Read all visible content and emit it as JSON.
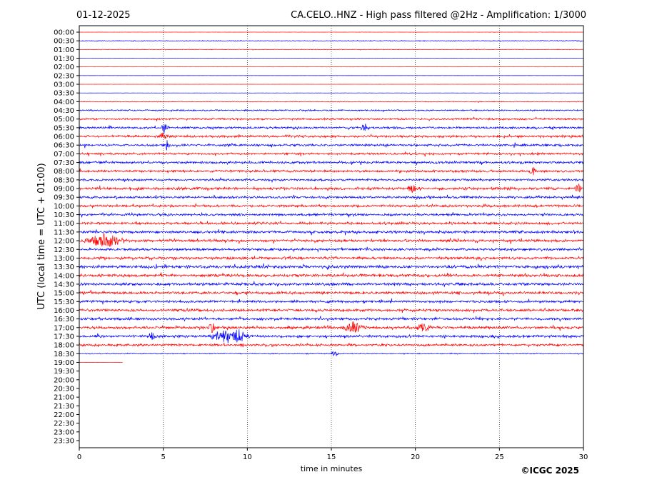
{
  "header": {
    "date": "01-12-2025",
    "title": "CA.CELO..HNZ - High pass filtered @2Hz - Amplification: 1/3000"
  },
  "footer": {
    "copyright": "©ICGC 2025"
  },
  "chart_data": {
    "type": "line",
    "title": "CA.CELO..HNZ - High pass filtered @2Hz - Amplification: 1/3000",
    "xlabel": "time in minutes",
    "ylabel": "UTC (local time = UTC + 01:00)",
    "xlim": [
      0,
      30
    ],
    "x_ticks": [
      "0",
      "5",
      "10",
      "15",
      "20",
      "25",
      "30"
    ],
    "y_ticks": [
      "00:00",
      "00:30",
      "01:00",
      "01:30",
      "02:00",
      "02:30",
      "03:00",
      "03:30",
      "04:00",
      "04:30",
      "05:00",
      "05:30",
      "06:00",
      "06:30",
      "07:00",
      "07:30",
      "08:00",
      "08:30",
      "09:00",
      "09:30",
      "10:00",
      "10:30",
      "11:00",
      "11:30",
      "12:00",
      "12:30",
      "13:00",
      "13:30",
      "14:00",
      "14:30",
      "15:00",
      "15:30",
      "16:00",
      "16:30",
      "17:00",
      "17:30",
      "18:00",
      "18:30",
      "19:00",
      "19:30",
      "20:00",
      "20:30",
      "21:00",
      "21:30",
      "22:00",
      "22:30",
      "23:00",
      "23:30"
    ],
    "grid": "vertical dotted lines every 5 minutes",
    "colors": {
      "even_rows": "#ff0000",
      "odd_rows": "#0000ff"
    },
    "trace_amplitude_by_row": [
      0.05,
      0.25,
      0.2,
      0.05,
      0.03,
      0.03,
      0.04,
      0.06,
      0.25,
      0.45,
      0.6,
      0.65,
      0.7,
      0.7,
      0.65,
      0.75,
      0.7,
      0.65,
      0.8,
      0.7,
      0.75,
      0.7,
      0.8,
      0.8,
      0.8,
      0.75,
      0.8,
      0.9,
      0.85,
      0.85,
      0.8,
      0.75,
      0.8,
      0.75,
      0.85,
      0.8,
      0.7,
      0.3,
      0.05,
      0,
      0,
      0,
      0,
      0,
      0,
      0,
      0,
      0
    ],
    "last_trace_end_minute": 2.6,
    "events": [
      {
        "row": "05:30",
        "minute": 17.0,
        "strength": 2.0
      },
      {
        "row": "05:30",
        "minute": 5.1,
        "strength": 3.0
      },
      {
        "row": "06:00",
        "minute": 5.0,
        "strength": 2.0
      },
      {
        "row": "06:30",
        "minute": 5.2,
        "strength": 2.0
      },
      {
        "row": "08:00",
        "minute": 27.0,
        "strength": 1.8
      },
      {
        "row": "09:00",
        "minute": 19.8,
        "strength": 2.5
      },
      {
        "row": "09:00",
        "minute": 29.7,
        "strength": 2.0
      },
      {
        "row": "12:00",
        "minute": 1.5,
        "strength": 2.8,
        "duration": 1.4
      },
      {
        "row": "17:00",
        "minute": 7.9,
        "strength": 2.2
      },
      {
        "row": "17:00",
        "minute": 16.3,
        "strength": 2.4,
        "duration": 0.8
      },
      {
        "row": "17:00",
        "minute": 20.5,
        "strength": 1.8,
        "duration": 0.6
      },
      {
        "row": "17:30",
        "minute": 8.6,
        "strength": 2.8,
        "duration": 0.9
      },
      {
        "row": "17:30",
        "minute": 9.5,
        "strength": 2.8,
        "duration": 0.7
      },
      {
        "row": "17:30",
        "minute": 4.3,
        "strength": 1.8
      },
      {
        "row": "18:30",
        "minute": 15.2,
        "strength": 1.6
      }
    ]
  }
}
